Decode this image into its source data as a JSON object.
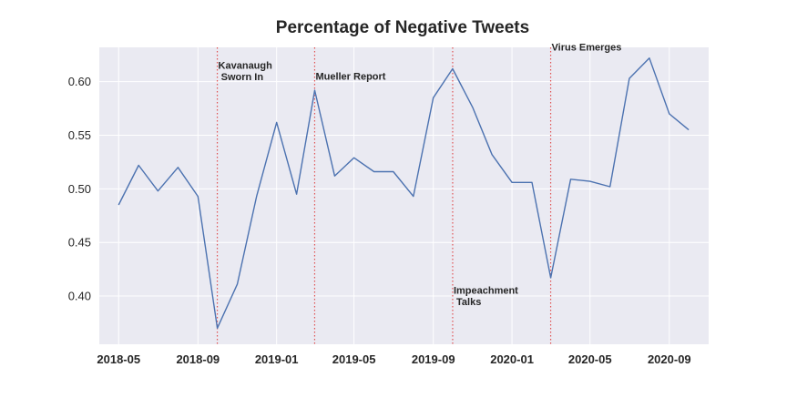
{
  "chart_data": {
    "type": "line",
    "title": "Percentage of Negative Tweets",
    "xlabel": "",
    "ylabel": "",
    "grid": true,
    "background": "#eaeaf2",
    "line_color": "#4c72b0",
    "event_line_color": "#e05252",
    "ylim": [
      0.355,
      0.632
    ],
    "xlim": [
      "2018-04-01",
      "2020-11-01"
    ],
    "yticks": [
      "0.40",
      "0.45",
      "0.50",
      "0.55",
      "0.60"
    ],
    "ytick_values": [
      0.4,
      0.45,
      0.5,
      0.55,
      0.6
    ],
    "xticks": [
      "2018-05",
      "2018-09",
      "2019-01",
      "2019-05",
      "2019-09",
      "2020-01",
      "2020-05",
      "2020-09"
    ],
    "xtick_dates": [
      "2018-05-01",
      "2018-09-01",
      "2019-01-01",
      "2019-05-01",
      "2019-09-01",
      "2020-01-01",
      "2020-05-01",
      "2020-09-01"
    ],
    "series": [
      {
        "x": [
          "2018-05-01",
          "2018-06-01",
          "2018-07-01",
          "2018-08-01",
          "2018-09-01",
          "2018-10-01",
          "2018-11-01",
          "2018-12-01",
          "2019-01-01",
          "2019-02-01",
          "2019-03-01",
          "2019-04-01",
          "2019-05-01",
          "2019-06-01",
          "2019-07-01",
          "2019-08-01",
          "2019-09-01",
          "2019-10-01",
          "2019-11-01",
          "2019-12-01",
          "2020-01-01",
          "2020-02-01",
          "2020-03-01",
          "2020-04-01",
          "2020-05-01",
          "2020-06-01",
          "2020-07-01",
          "2020-08-01",
          "2020-09-01",
          "2020-10-01"
        ],
        "values": [
          0.485,
          0.522,
          0.498,
          0.52,
          0.493,
          0.37,
          0.411,
          0.493,
          0.562,
          0.495,
          0.592,
          0.512,
          0.529,
          0.516,
          0.516,
          0.493,
          0.585,
          0.612,
          0.576,
          0.532,
          0.506,
          0.506,
          0.417,
          0.509,
          0.507,
          0.502,
          0.603,
          0.622,
          0.57,
          0.555
        ]
      }
    ],
    "annotations": [
      {
        "date": "2018-10-01",
        "lines": [
          "Kavanaugh",
          " Sworn In"
        ],
        "y": 0.612
      },
      {
        "date": "2019-03-01",
        "lines": [
          "Mueller Report"
        ],
        "y": 0.602
      },
      {
        "date": "2019-10-01",
        "lines": [
          "Impeachment",
          " Talks"
        ],
        "y": 0.402
      },
      {
        "date": "2020-03-01",
        "lines": [
          "Virus Emerges"
        ],
        "y": 0.629
      }
    ]
  }
}
